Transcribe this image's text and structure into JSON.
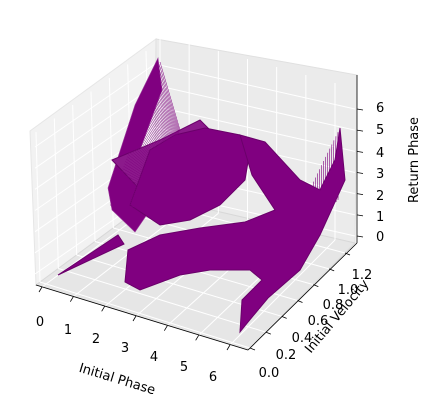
{
  "chart_data": {
    "type": "surface",
    "xlabel": "Initial Phase",
    "ylabel": "Initial Velocity",
    "zlabel": "Return Phase",
    "xticks": [
      "0",
      "1",
      "2",
      "3",
      "4",
      "5",
      "6"
    ],
    "yticks": [
      "0.0",
      "0.2",
      "0.4",
      "0.6",
      "0.8",
      "1.0",
      "1.2"
    ],
    "zticks": [
      "0",
      "1",
      "2",
      "3",
      "4",
      "5",
      "6"
    ],
    "xlim": [
      0,
      6.28
    ],
    "ylim": [
      0,
      1.25
    ],
    "zlim": [
      -0.3,
      6.5
    ],
    "grid": true,
    "surface_color": "#800080"
  }
}
